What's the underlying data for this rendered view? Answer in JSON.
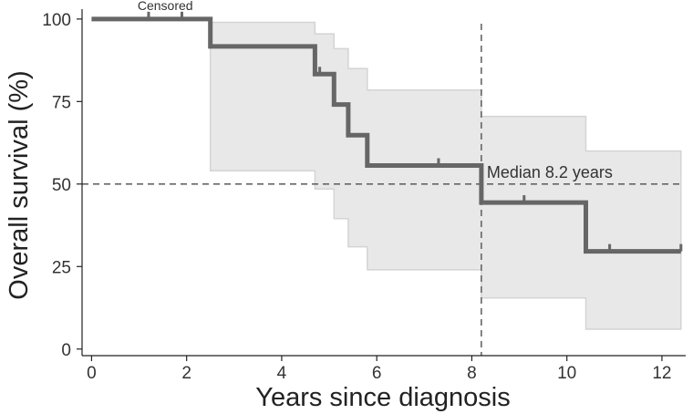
{
  "chart_data": {
    "type": "line",
    "subtype": "kaplan-meier step curve with confidence band",
    "xlabel": "Years since diagnosis",
    "ylabel": "Overall survival (%)",
    "xlim": [
      -0.2,
      12.5
    ],
    "ylim": [
      -2,
      103
    ],
    "xticks": [
      0,
      2,
      4,
      6,
      8,
      10,
      12
    ],
    "yticks": [
      0,
      25,
      50,
      75,
      100
    ],
    "grid": false,
    "colors": {
      "curve": "#666666",
      "band": "#e8e8e8",
      "band_edge": "#d4d4d4",
      "reference": "#666666"
    },
    "survival": [
      {
        "x": 0.0,
        "y": 100.0
      },
      {
        "x": 2.5,
        "y": 91.7
      },
      {
        "x": 4.7,
        "y": 83.3
      },
      {
        "x": 5.1,
        "y": 74.1
      },
      {
        "x": 5.4,
        "y": 64.8
      },
      {
        "x": 5.8,
        "y": 55.6
      },
      {
        "x": 8.2,
        "y": 44.4
      },
      {
        "x": 10.4,
        "y": 29.6
      },
      {
        "x": 12.4,
        "y": 29.6
      }
    ],
    "ci_upper": [
      {
        "x": 0.0,
        "y": 100
      },
      {
        "x": 2.5,
        "y": 99
      },
      {
        "x": 4.7,
        "y": 95.5
      },
      {
        "x": 5.1,
        "y": 91
      },
      {
        "x": 5.4,
        "y": 85
      },
      {
        "x": 5.8,
        "y": 78.5
      },
      {
        "x": 8.2,
        "y": 70.5
      },
      {
        "x": 10.4,
        "y": 60
      },
      {
        "x": 12.4,
        "y": 60
      }
    ],
    "ci_lower": [
      {
        "x": 0.0,
        "y": 100
      },
      {
        "x": 2.5,
        "y": 54
      },
      {
        "x": 4.7,
        "y": 48.5
      },
      {
        "x": 5.1,
        "y": 39.5
      },
      {
        "x": 5.4,
        "y": 31
      },
      {
        "x": 5.8,
        "y": 24
      },
      {
        "x": 8.2,
        "y": 15.5
      },
      {
        "x": 10.4,
        "y": 6
      },
      {
        "x": 12.4,
        "y": 6
      }
    ],
    "censored_times": [
      1.2,
      1.9,
      4.8,
      7.3,
      9.1,
      10.9,
      12.4
    ],
    "median": {
      "x": 8.2,
      "y": 50,
      "label": "Median 8.2 years"
    },
    "censored_label": "Censored"
  }
}
